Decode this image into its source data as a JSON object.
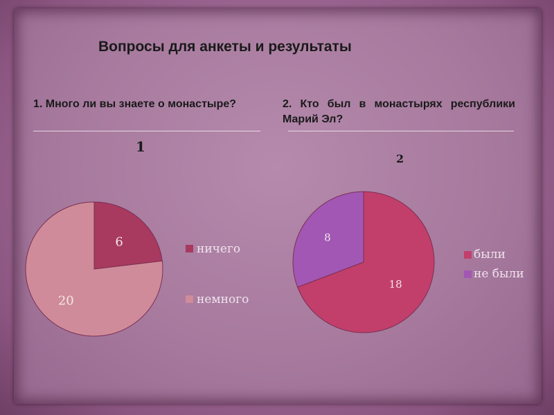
{
  "slide": {
    "title": "Вопросы для анкеты и результаты"
  },
  "questions": [
    {
      "text": "1. Много ли вы знаете о монастыре?"
    },
    {
      "text": "2. Кто был в монастырях республики Марий Эл?"
    }
  ],
  "chart_data": [
    {
      "type": "pie",
      "title": "1",
      "categories": [
        "ничего",
        "немного"
      ],
      "values": [
        6,
        20
      ],
      "colors": [
        "#a8395f",
        "#cf8b99"
      ],
      "label_colors": [
        "#f3e6ea",
        "#f3e6ea"
      ],
      "legend": "right",
      "legend_text_colors": [
        "#f1e3ee",
        "#f1e3ee"
      ]
    },
    {
      "type": "pie",
      "title": "2",
      "categories": [
        "были",
        "не были"
      ],
      "values": [
        18,
        8
      ],
      "colors": [
        "#c23f6b",
        "#a257b4"
      ],
      "label_colors": [
        "#f3e6ea",
        "#f3e6ea"
      ],
      "legend": "right",
      "legend_text_colors": [
        "#f1e3ee",
        "#f1e3ee"
      ]
    }
  ]
}
